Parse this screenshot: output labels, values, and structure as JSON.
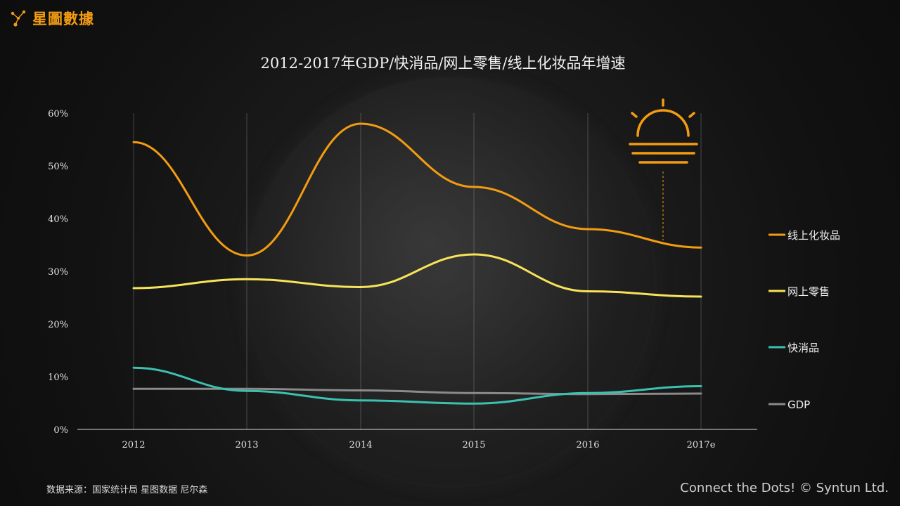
{
  "brand": {
    "name": "星圖數據"
  },
  "footer": {
    "source": "数据来源：国家统计局 星图数据 尼尔森",
    "credit": "Connect the Dots! © Syntun Ltd."
  },
  "chart_data": {
    "type": "line",
    "title": "2012-2017年GDP/快消品/网上零售/线上化妆品年增速",
    "categories": [
      "2012",
      "2013",
      "2014",
      "2015",
      "2016",
      "2017e"
    ],
    "yticks": [
      "0%",
      "10%",
      "20%",
      "30%",
      "40%",
      "50%",
      "60%"
    ],
    "ylim": [
      0,
      60
    ],
    "grid": "vertical",
    "legend_position": "right",
    "series": [
      {
        "name": "线上化妆品",
        "color": "#f39c12",
        "values": [
          54.5,
          33.0,
          58.0,
          46.0,
          38.0,
          34.5
        ]
      },
      {
        "name": "网上零售",
        "color": "#f7e35a",
        "values": [
          26.8,
          28.5,
          27.0,
          33.2,
          26.2,
          25.2
        ]
      },
      {
        "name": "快消品",
        "color": "#3cc1b0",
        "values": [
          11.7,
          7.3,
          5.5,
          4.9,
          6.9,
          8.2
        ]
      },
      {
        "name": "GDP",
        "color": "#8a8a8a",
        "values": [
          7.7,
          7.7,
          7.4,
          6.9,
          6.7,
          6.8
        ]
      }
    ]
  }
}
